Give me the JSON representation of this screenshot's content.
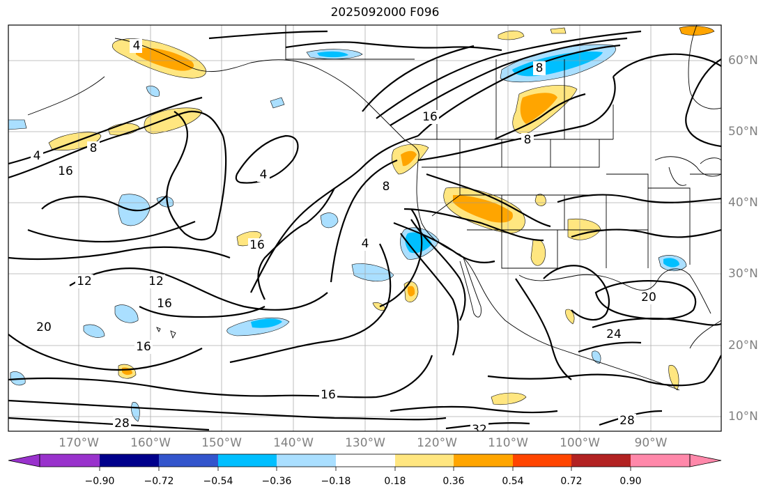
{
  "title": "2025092000 F096",
  "colors": {
    "contour": "#000000",
    "coast": "#000000",
    "grid": "#999999",
    "tick_label": "#808080"
  },
  "lon_labels": [
    "170°W",
    "160°W",
    "150°W",
    "140°W",
    "130°W",
    "120°W",
    "110°W",
    "100°W",
    "90°W"
  ],
  "lat_labels": [
    "60°N",
    "50°N",
    "40°N",
    "30°N",
    "20°N",
    "10°N"
  ],
  "colorbar": {
    "ticks": [
      "−0.90",
      "−0.72",
      "−0.54",
      "−0.36",
      "−0.18",
      "0.18",
      "0.36",
      "0.54",
      "0.72",
      "0.90"
    ],
    "colors": [
      "#9932cc",
      "#00008b",
      "#3355cc",
      "#00bfff",
      "#aadfff",
      "#ffffff",
      "#ffe680",
      "#ffa500",
      "#ff4500",
      "#b22222",
      "#ff88aa"
    ]
  },
  "contour_labels": [
    "4",
    "4",
    "4",
    "4",
    "8",
    "8",
    "8",
    "8",
    "12",
    "12",
    "16",
    "16",
    "16",
    "16",
    "16",
    "16",
    "20",
    "20",
    "24",
    "28",
    "28",
    "32"
  ]
}
